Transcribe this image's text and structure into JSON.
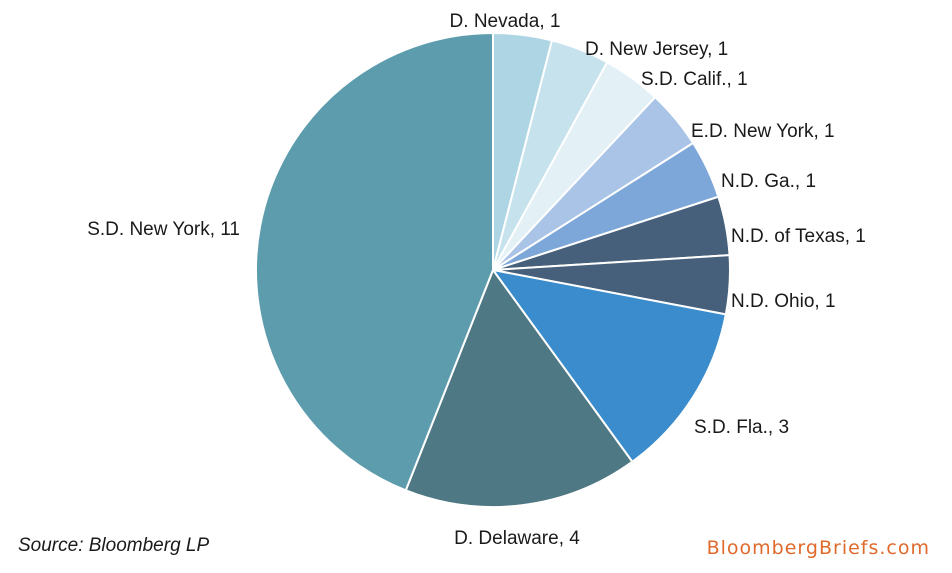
{
  "chart_data": {
    "type": "pie",
    "slices": [
      {
        "label": "D. Nevada, 1",
        "value": 1,
        "color": "#add5e3"
      },
      {
        "label": "D. New Jersey, 1",
        "value": 1,
        "color": "#c6e2ec"
      },
      {
        "label": "S.D. Calif., 1",
        "value": 1,
        "color": "#e3f0f6"
      },
      {
        "label": "E.D. New York, 1",
        "value": 1,
        "color": "#a9c4e6"
      },
      {
        "label": "N.D. Ga., 1",
        "value": 1,
        "color": "#7ea7d9"
      },
      {
        "label": "N.D. of Texas, 1",
        "value": 1,
        "color": "#46607c"
      },
      {
        "label": "N.D. Ohio, 1",
        "value": 1,
        "color": "#46607c"
      },
      {
        "label": "S.D. Fla., 3",
        "value": 3,
        "color": "#3a8ccc"
      },
      {
        "label": "D. Delaware, 4",
        "value": 4,
        "color": "#4e7883"
      },
      {
        "label": "S.D. New York, 11",
        "value": 11,
        "color": "#5d9cad"
      }
    ]
  },
  "footer": {
    "source": "Source: Bloomberg LP",
    "brand_part1": "Bloomberg",
    "brand_part2": "Briefs",
    "brand_part3": ".com",
    "brand_color": "#e06a2c"
  }
}
